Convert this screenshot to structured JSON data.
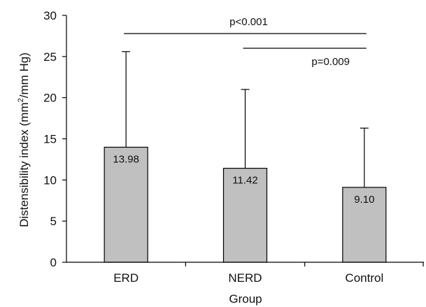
{
  "chart_data": {
    "type": "bar",
    "categories": [
      "ERD",
      "NERD",
      "Control"
    ],
    "values": [
      13.98,
      11.42,
      9.1
    ],
    "error_upper": [
      25.6,
      21.0,
      16.3
    ],
    "value_labels": [
      "13.98",
      "11.42",
      "9.10"
    ],
    "xlabel": "Group",
    "ylabel": {
      "before": "Distensibility index (mm",
      "sup": "2",
      "after": "/mm Hg)"
    },
    "ylim": [
      0,
      30
    ],
    "yticks": [
      0,
      5,
      10,
      15,
      20,
      25,
      30
    ],
    "bar_color": "#c0c0c0",
    "grid": false,
    "significance": [
      {
        "from": "ERD",
        "to": "Control",
        "label": "p<0.001"
      },
      {
        "from": "NERD",
        "to": "Control",
        "label": "p=0.009"
      }
    ]
  }
}
